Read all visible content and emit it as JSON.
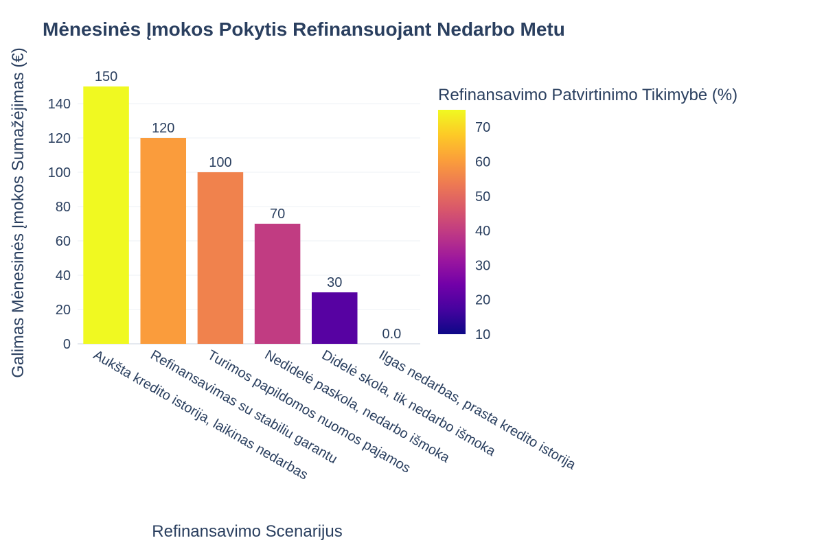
{
  "chart_data": {
    "type": "bar",
    "title": "Mėnesinės Įmokos Pokytis Refinansuojant Nedarbo Metu",
    "xlabel": "Refinansavimo Scenarijus",
    "ylabel": "Galimas Mėnesinės Įmokos Sumažėjimas (€)",
    "categories": [
      "Aukšta kredito istorija, laikinas nedarbas",
      "Refinansavimas su stabiliu garantu",
      "Turimos papildomos nuomos pajamos",
      "Nedidelė paskola, nedarbo išmoka",
      "Didelė skola, tik nedarbo išmoka",
      "Ilgas nedarbas, prasta kredito istorija"
    ],
    "values": [
      150,
      120,
      100,
      70,
      30,
      0
    ],
    "data_labels": [
      "150",
      "120",
      "100",
      "70",
      "30",
      "0.0"
    ],
    "color_values": [
      75,
      60,
      55,
      40,
      20,
      10
    ],
    "ylim": [
      0,
      150
    ],
    "yticks": [
      0,
      20,
      40,
      60,
      80,
      100,
      120,
      140
    ],
    "grid": true,
    "colorbar": {
      "title": "Refinansavimo Patvirtinimo Tikimybė (%)",
      "colorscale": "plasma",
      "range": [
        10,
        75
      ],
      "ticks": [
        10,
        20,
        30,
        40,
        50,
        60,
        70
      ]
    }
  }
}
